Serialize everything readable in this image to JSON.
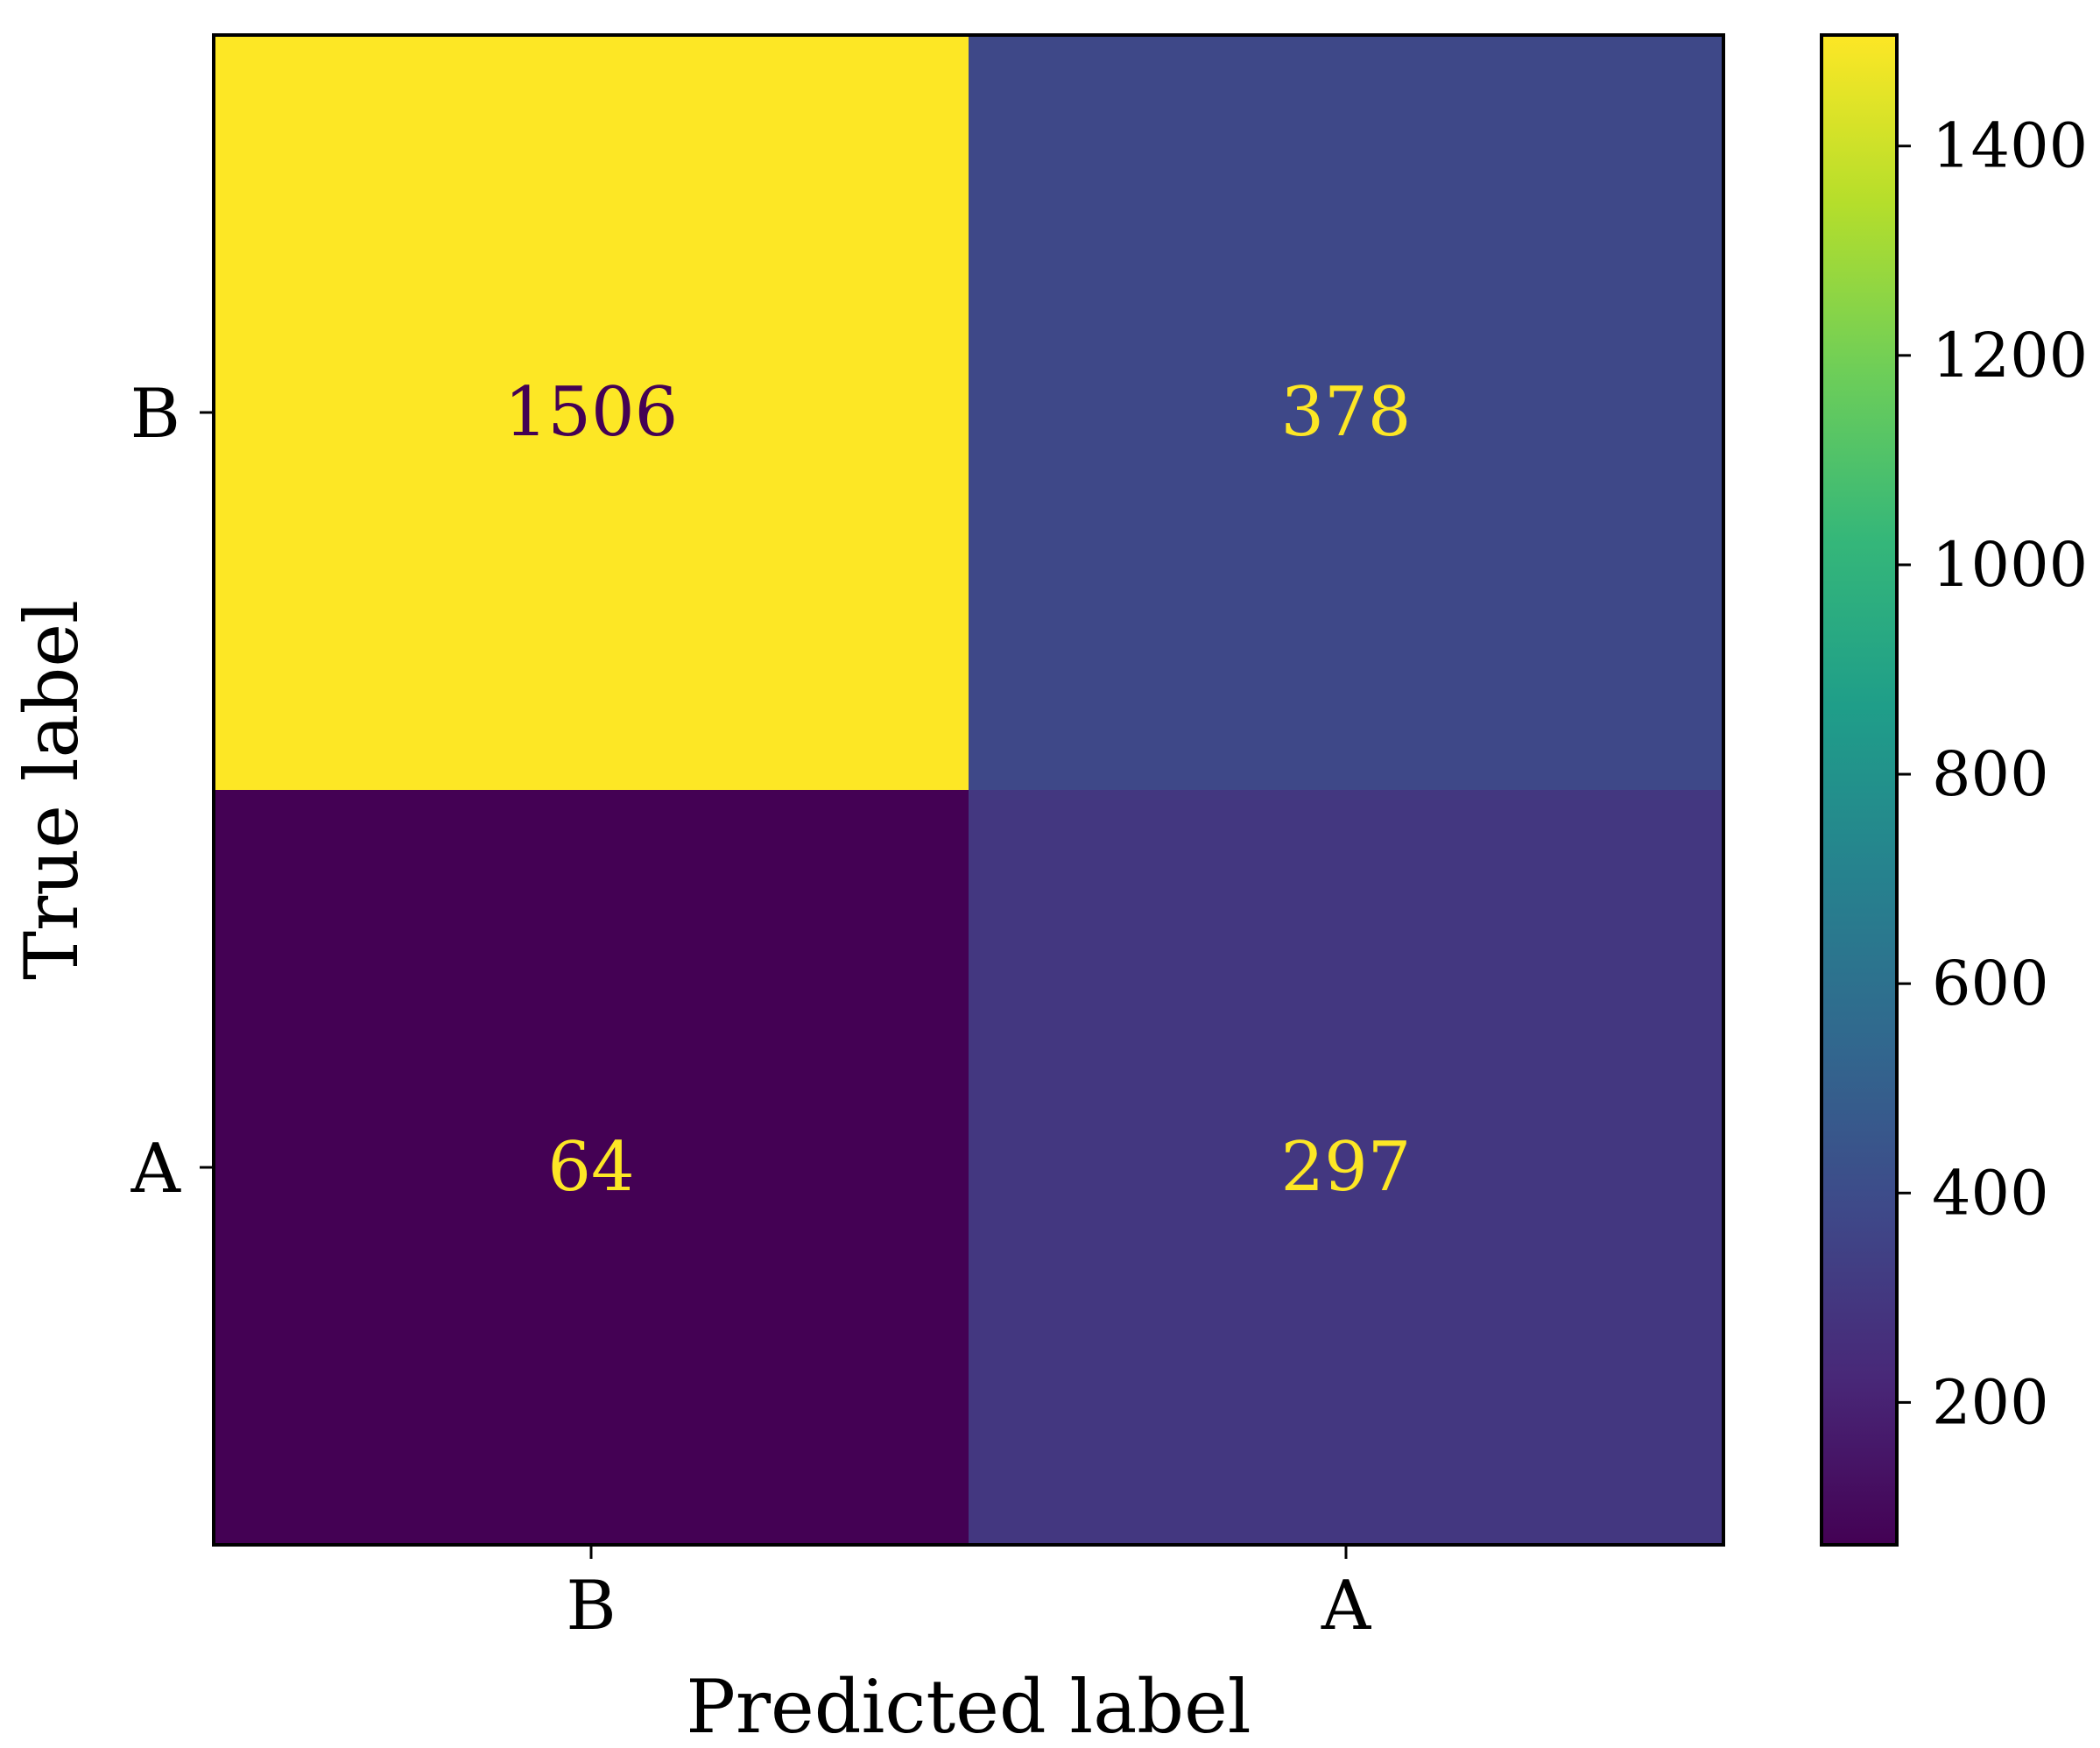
{
  "chart_data": {
    "type": "heatmap",
    "title": "",
    "xlabel": "Predicted label",
    "ylabel": "True label",
    "x_categories": [
      "B",
      "A"
    ],
    "y_categories": [
      "B",
      "A"
    ],
    "matrix": [
      [
        1506,
        378
      ],
      [
        64,
        297
      ]
    ],
    "colormap": "viridis",
    "colorbar": {
      "min": 64,
      "max": 1506,
      "ticks": [
        200,
        400,
        600,
        800,
        1000,
        1200,
        1400
      ]
    }
  },
  "colors": {
    "viridis_stops": [
      "#440154",
      "#482878",
      "#3e4989",
      "#31688e",
      "#26828e",
      "#1f9e89",
      "#35b779",
      "#6ece58",
      "#b5de2b",
      "#fde725"
    ],
    "dark_text": "#440154",
    "light_text": "#fde725",
    "frame": "#000000"
  }
}
